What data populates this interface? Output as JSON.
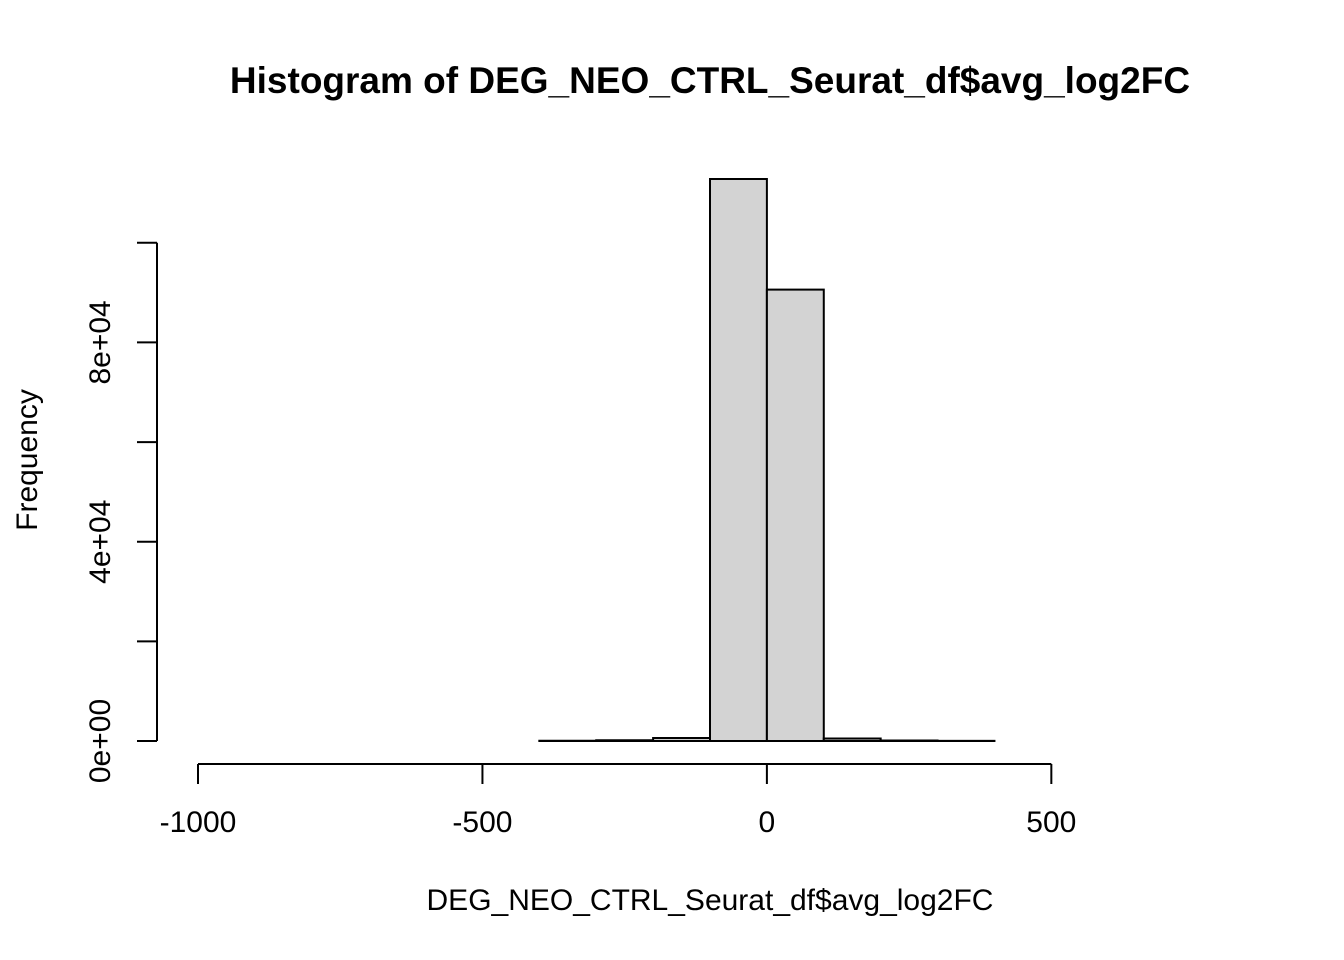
{
  "chart_data": {
    "type": "bar",
    "title": "Histogram of DEG_NEO_CTRL_Seurat_df$avg_log2FC",
    "xlabel": "DEG_NEO_CTRL_Seurat_df$avg_log2FC",
    "ylabel": "Frequency",
    "bin_width": 100,
    "bins": [
      {
        "x0": -1000,
        "x1": -900,
        "count": 0
      },
      {
        "x0": -900,
        "x1": -800,
        "count": 0
      },
      {
        "x0": -800,
        "x1": -700,
        "count": 0
      },
      {
        "x0": -700,
        "x1": -600,
        "count": 0
      },
      {
        "x0": -600,
        "x1": -500,
        "count": 0
      },
      {
        "x0": -500,
        "x1": -400,
        "count": 0
      },
      {
        "x0": -400,
        "x1": -300,
        "count": 50
      },
      {
        "x0": -300,
        "x1": -200,
        "count": 150
      },
      {
        "x0": -200,
        "x1": -100,
        "count": 600
      },
      {
        "x0": -100,
        "x1": 0,
        "count": 112800
      },
      {
        "x0": 0,
        "x1": 100,
        "count": 90600
      },
      {
        "x0": 100,
        "x1": 200,
        "count": 500
      },
      {
        "x0": 200,
        "x1": 300,
        "count": 100
      },
      {
        "x0": 300,
        "x1": 400,
        "count": 30
      },
      {
        "x0": 400,
        "x1": 500,
        "count": 0
      },
      {
        "x0": 500,
        "x1": 600,
        "count": 0
      },
      {
        "x0": 600,
        "x1": 700,
        "count": 0
      },
      {
        "x0": 700,
        "x1": 800,
        "count": 0
      }
    ],
    "xlim": [
      -1000,
      800
    ],
    "ylim": [
      0,
      120000
    ],
    "x_ticks": [
      -1000,
      -500,
      0,
      500
    ],
    "x_tick_labels": [
      "-1000",
      "-500",
      "0",
      "500"
    ],
    "y_ticks": [
      0,
      20000,
      40000,
      60000,
      80000,
      100000
    ],
    "y_tick_labels": [
      "0e+00",
      "",
      "4e+04",
      "",
      "8e+04",
      ""
    ],
    "grid": false,
    "legend": "none"
  }
}
